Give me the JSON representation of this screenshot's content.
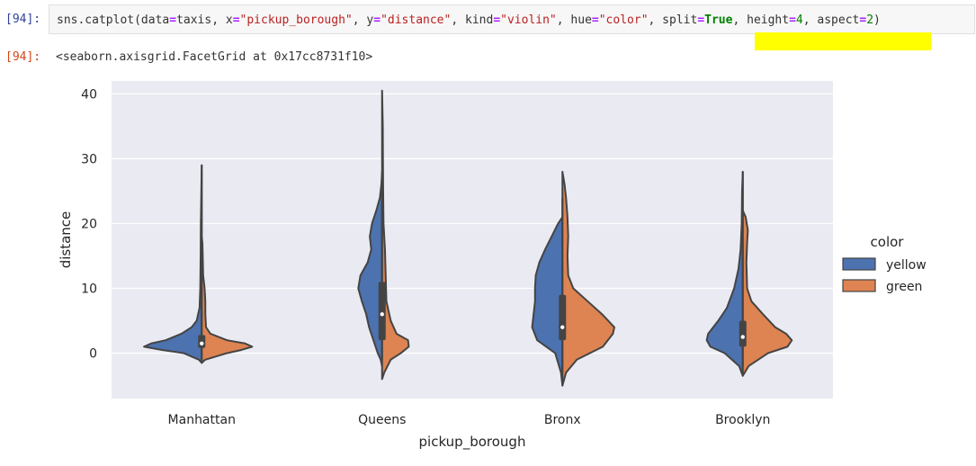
{
  "cell": {
    "input_prompt": "[94]:",
    "output_prompt": "[94]:",
    "code_tokens": [
      {
        "t": "sns.catplot(data",
        "c": ""
      },
      {
        "t": "=",
        "c": "op"
      },
      {
        "t": "taxis, x",
        "c": ""
      },
      {
        "t": "=",
        "c": "op"
      },
      {
        "t": "\"pickup_borough\"",
        "c": "str"
      },
      {
        "t": ", y",
        "c": ""
      },
      {
        "t": "=",
        "c": "op"
      },
      {
        "t": "\"distance\"",
        "c": "str"
      },
      {
        "t": ", kind",
        "c": ""
      },
      {
        "t": "=",
        "c": "op"
      },
      {
        "t": "\"violin\"",
        "c": "str"
      },
      {
        "t": ", hue",
        "c": ""
      },
      {
        "t": "=",
        "c": "op"
      },
      {
        "t": "\"color\"",
        "c": "str"
      },
      {
        "t": ", split",
        "c": ""
      },
      {
        "t": "=",
        "c": "op"
      },
      {
        "t": "True",
        "c": "bool"
      },
      {
        "t": ", height",
        "c": ""
      },
      {
        "t": "=",
        "c": "op"
      },
      {
        "t": "4",
        "c": "kw"
      },
      {
        "t": ", aspect",
        "c": ""
      },
      {
        "t": "=",
        "c": "op"
      },
      {
        "t": "2",
        "c": "kw"
      },
      {
        "t": ")",
        "c": ""
      }
    ],
    "output_text": "<seaborn.axisgrid.FacetGrid at 0x17cc8731f10>",
    "highlight_color": "#ffff00"
  },
  "chart_data": {
    "type": "violin",
    "xlabel": "pickup_borough",
    "ylabel": "distance",
    "categories": [
      "Manhattan",
      "Queens",
      "Bronx",
      "Brooklyn"
    ],
    "yticks": [
      0,
      10,
      20,
      30,
      40
    ],
    "ylim": [
      -7,
      42
    ],
    "grid": true,
    "legend": {
      "title": "color",
      "placement": "right"
    },
    "series": [
      {
        "name": "yellow",
        "color": "#4c72b0"
      },
      {
        "name": "green",
        "color": "#dd8452"
      }
    ],
    "violins": [
      {
        "category": "Manhattan",
        "left_profile": [
          [
            -1.5,
            0
          ],
          [
            -1,
            0.04
          ],
          [
            0,
            0.25
          ],
          [
            0.5,
            0.55
          ],
          [
            1,
            0.8
          ],
          [
            1.5,
            0.7
          ],
          [
            2,
            0.5
          ],
          [
            3,
            0.28
          ],
          [
            4,
            0.14
          ],
          [
            5,
            0.07
          ],
          [
            7,
            0.03
          ],
          [
            10,
            0.02
          ],
          [
            15,
            0.015
          ],
          [
            20,
            0.012
          ],
          [
            29,
            0
          ]
        ],
        "right_profile": [
          [
            -1.5,
            0
          ],
          [
            -1,
            0.05
          ],
          [
            0,
            0.35
          ],
          [
            0.5,
            0.55
          ],
          [
            1,
            0.7
          ],
          [
            1.5,
            0.6
          ],
          [
            2,
            0.35
          ],
          [
            3,
            0.12
          ],
          [
            4,
            0.06
          ],
          [
            6,
            0.05
          ],
          [
            8,
            0.05
          ],
          [
            10,
            0.04
          ],
          [
            12,
            0.02
          ],
          [
            17,
            0.01
          ],
          [
            18,
            0
          ]
        ],
        "median": 1.5,
        "q1": 0.8,
        "q3": 2.8,
        "whisker_low": -1.2,
        "whisker_high": 29
      },
      {
        "category": "Queens",
        "left_profile": [
          [
            -2,
            0
          ],
          [
            -1,
            0.02
          ],
          [
            0,
            0.06
          ],
          [
            2,
            0.12
          ],
          [
            4,
            0.18
          ],
          [
            6,
            0.22
          ],
          [
            8,
            0.28
          ],
          [
            10,
            0.33
          ],
          [
            12,
            0.3
          ],
          [
            14,
            0.2
          ],
          [
            16,
            0.15
          ],
          [
            18,
            0.17
          ],
          [
            20,
            0.14
          ],
          [
            22,
            0.08
          ],
          [
            24,
            0.03
          ],
          [
            26,
            0.01
          ],
          [
            28,
            0
          ]
        ],
        "right_profile": [
          [
            -4,
            0
          ],
          [
            -3,
            0.03
          ],
          [
            -1,
            0.12
          ],
          [
            0,
            0.26
          ],
          [
            1,
            0.37
          ],
          [
            2,
            0.36
          ],
          [
            3,
            0.2
          ],
          [
            5,
            0.12
          ],
          [
            8,
            0.06
          ],
          [
            12,
            0.05
          ],
          [
            16,
            0.04
          ],
          [
            20,
            0.02
          ],
          [
            25,
            0.015
          ],
          [
            30,
            0.012
          ],
          [
            35,
            0.01
          ],
          [
            40.5,
            0
          ]
        ],
        "median": 6,
        "q1": 2,
        "q3": 11,
        "whisker_low": -1,
        "whisker_high": 25
      },
      {
        "category": "Bronx",
        "left_profile": [
          [
            -5,
            0
          ],
          [
            -3,
            0.02
          ],
          [
            0,
            0.1
          ],
          [
            2,
            0.35
          ],
          [
            4,
            0.42
          ],
          [
            6,
            0.4
          ],
          [
            8,
            0.38
          ],
          [
            10,
            0.38
          ],
          [
            12,
            0.37
          ],
          [
            14,
            0.32
          ],
          [
            16,
            0.24
          ],
          [
            18,
            0.15
          ],
          [
            20,
            0.06
          ],
          [
            21,
            0
          ]
        ],
        "right_profile": [
          [
            -5,
            0
          ],
          [
            -3,
            0.05
          ],
          [
            -1,
            0.2
          ],
          [
            1,
            0.56
          ],
          [
            3,
            0.7
          ],
          [
            4,
            0.72
          ],
          [
            6,
            0.55
          ],
          [
            8,
            0.35
          ],
          [
            10,
            0.15
          ],
          [
            12,
            0.08
          ],
          [
            15,
            0.07
          ],
          [
            18,
            0.08
          ],
          [
            21,
            0.07
          ],
          [
            24,
            0.05
          ],
          [
            26,
            0.03
          ],
          [
            28,
            0
          ]
        ],
        "median": 4,
        "q1": 2,
        "q3": 9,
        "whisker_low": -3,
        "whisker_high": 24
      },
      {
        "category": "Brooklyn",
        "left_profile": [
          [
            -3.5,
            0
          ],
          [
            -2,
            0.05
          ],
          [
            0,
            0.25
          ],
          [
            1,
            0.45
          ],
          [
            2,
            0.5
          ],
          [
            3,
            0.48
          ],
          [
            5,
            0.34
          ],
          [
            7,
            0.22
          ],
          [
            10,
            0.12
          ],
          [
            13,
            0.06
          ],
          [
            16,
            0.03
          ],
          [
            20,
            0.015
          ],
          [
            25,
            0.01
          ],
          [
            28,
            0
          ]
        ],
        "right_profile": [
          [
            -3.5,
            0
          ],
          [
            -2,
            0.08
          ],
          [
            0,
            0.35
          ],
          [
            1,
            0.62
          ],
          [
            2,
            0.68
          ],
          [
            3,
            0.6
          ],
          [
            4,
            0.45
          ],
          [
            6,
            0.28
          ],
          [
            8,
            0.12
          ],
          [
            10,
            0.06
          ],
          [
            14,
            0.05
          ],
          [
            17,
            0.06
          ],
          [
            19,
            0.07
          ],
          [
            21,
            0.04
          ],
          [
            22,
            0
          ]
        ],
        "median": 2.5,
        "q1": 1,
        "q3": 5,
        "whisker_low": -2,
        "whisker_high": 28
      }
    ]
  }
}
